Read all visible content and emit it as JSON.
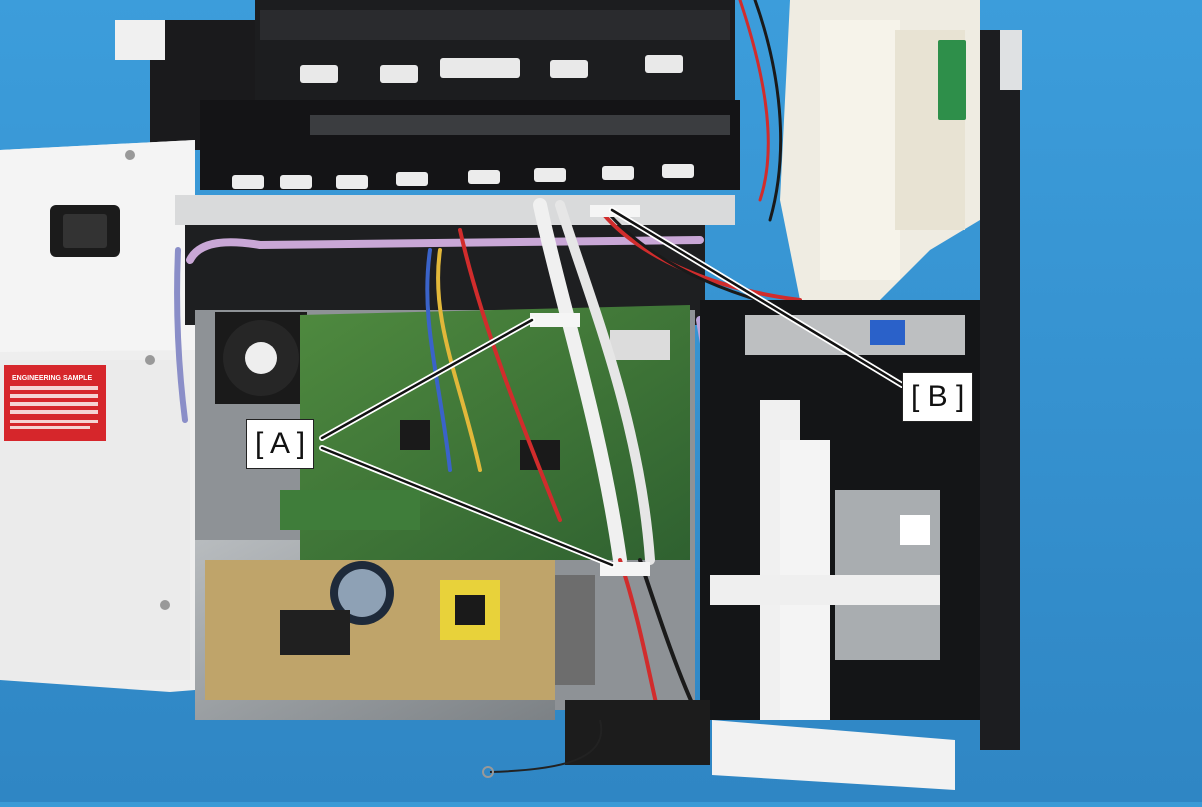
{
  "image": {
    "kind": "photo",
    "subject": "printer-internal-components"
  },
  "callouts": {
    "a": {
      "label": "[ A ]"
    },
    "b": {
      "label": "[ B ]"
    }
  },
  "sticker": {
    "title": "ENGINEERING SAMPLE"
  },
  "colors": {
    "background": "#3a9ad6",
    "callout_line": "#111111",
    "callout_box": "#ffffff",
    "sticker": "#d6262b"
  }
}
